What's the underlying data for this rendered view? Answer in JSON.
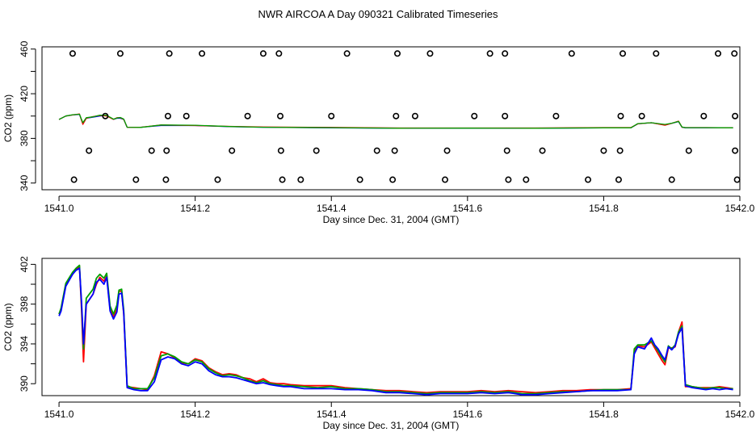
{
  "title": "NWR AIRCOA A  Day 090321  Calibrated Timeseries",
  "colors": {
    "red": "#ff0000",
    "green": "#00a000",
    "blue": "#0000ff",
    "axis": "#000000",
    "points": "#000000"
  },
  "chart_data": [
    {
      "type": "line",
      "panel": "top",
      "xlabel": "Day since Dec. 31, 2004 (GMT)",
      "ylabel": "CO2 (ppm)",
      "xlim": [
        0.975,
        2.0
      ],
      "ylim": [
        334,
        462
      ],
      "x_offset_label": "1541",
      "x_ticks": [
        1.0,
        1.2,
        1.4,
        1.6,
        1.8,
        2.0
      ],
      "x_tick_labels": [
        "1541.0",
        "1541.2",
        "1541.4",
        "1541.6",
        "1541.8",
        "1542.0"
      ],
      "y_ticks": [
        340,
        380,
        420,
        460
      ],
      "y_tick_labels": [
        "340",
        "380",
        "420",
        "460"
      ],
      "y_minor_ticks": [
        360,
        400,
        440
      ],
      "grid": false,
      "series": [
        {
          "color": "blue",
          "x": [
            1.0,
            1.01,
            1.02,
            1.03,
            1.035,
            1.04,
            1.05,
            1.06,
            1.07,
            1.08,
            1.085,
            1.09,
            1.095,
            1.1,
            1.12,
            1.15,
            1.2,
            1.25,
            1.3,
            1.4,
            1.5,
            1.6,
            1.7,
            1.8,
            1.84,
            1.85,
            1.87,
            1.89,
            1.9,
            1.91,
            1.915,
            1.92,
            1.95,
            1.99
          ],
          "y": [
            397,
            400,
            401,
            401.5,
            393,
            398,
            399,
            400,
            400.5,
            397,
            398,
            398,
            397,
            390,
            390,
            391.5,
            391.5,
            390.5,
            390,
            389.5,
            389,
            389,
            389,
            389.5,
            389.5,
            393,
            394,
            392,
            393.5,
            395,
            390,
            389.5,
            389.5,
            389.5
          ]
        },
        {
          "color": "red",
          "x": [
            1.0,
            1.01,
            1.02,
            1.03,
            1.035,
            1.04,
            1.05,
            1.06,
            1.07,
            1.08,
            1.085,
            1.09,
            1.095,
            1.1,
            1.12,
            1.15,
            1.2,
            1.25,
            1.3,
            1.4,
            1.5,
            1.6,
            1.7,
            1.8,
            1.84,
            1.85,
            1.87,
            1.89,
            1.9,
            1.91,
            1.915,
            1.92,
            1.95,
            1.99
          ],
          "y": [
            397,
            400,
            401,
            401.8,
            392.5,
            398,
            399.5,
            400.5,
            400,
            397,
            398.5,
            398.5,
            397,
            390,
            390,
            392,
            391.5,
            390.8,
            390.2,
            389.8,
            389.3,
            389.3,
            389.3,
            389.7,
            389.7,
            393,
            394,
            391.8,
            393.5,
            395.5,
            390,
            389.7,
            389.7,
            389.5
          ]
        },
        {
          "color": "green",
          "x": [
            1.0,
            1.01,
            1.02,
            1.03,
            1.035,
            1.04,
            1.05,
            1.06,
            1.07,
            1.08,
            1.085,
            1.09,
            1.095,
            1.1,
            1.12,
            1.15,
            1.2,
            1.25,
            1.3,
            1.4,
            1.5,
            1.6,
            1.7,
            1.8,
            1.84,
            1.85,
            1.87,
            1.89,
            1.9,
            1.91,
            1.915,
            1.92,
            1.95,
            1.99
          ],
          "y": [
            397,
            400,
            401.2,
            401.6,
            394,
            398.5,
            399.3,
            400.8,
            400.7,
            397.2,
            398.2,
            398.7,
            397.3,
            390,
            389.8,
            392,
            391.8,
            390.6,
            390,
            389.6,
            389.1,
            389.2,
            389.1,
            389.5,
            389.5,
            393.2,
            394,
            392.5,
            393.6,
            395.2,
            390.2,
            389.6,
            389.6,
            389.5
          ]
        }
      ],
      "points": {
        "x": [
          1.02,
          1.09,
          1.162,
          1.21,
          1.3,
          1.323,
          1.423,
          1.497,
          1.545,
          1.633,
          1.655,
          1.753,
          1.828,
          1.877,
          1.968,
          1.992,
          1.068,
          1.16,
          1.187,
          1.277,
          1.325,
          1.4,
          1.495,
          1.523,
          1.61,
          1.655,
          1.73,
          1.825,
          1.856,
          1.947,
          1.993,
          1.044,
          1.136,
          1.158,
          1.254,
          1.326,
          1.378,
          1.467,
          1.493,
          1.57,
          1.658,
          1.71,
          1.8,
          1.824,
          1.925,
          1.993,
          1.022,
          1.113,
          1.157,
          1.233,
          1.328,
          1.355,
          1.442,
          1.49,
          1.567,
          1.66,
          1.686,
          1.777,
          1.822,
          1.9,
          1.996
        ],
        "y": [
          456,
          456,
          456,
          456,
          456,
          456,
          456,
          456,
          456,
          456,
          456,
          456,
          456,
          456,
          456,
          456,
          400,
          400,
          400,
          400,
          400,
          400,
          400,
          400,
          400,
          400,
          400,
          400,
          400,
          400,
          400,
          369,
          369,
          369,
          369,
          369,
          369,
          369,
          369,
          369,
          369,
          369,
          369,
          369,
          369,
          369,
          343,
          343,
          343,
          343,
          343,
          343,
          343,
          343,
          343,
          343,
          343,
          343,
          343,
          343,
          343
        ]
      }
    },
    {
      "type": "line",
      "panel": "bottom",
      "xlabel": "Day since Dec. 31, 2004 (GMT)",
      "ylabel": "CO2 (ppm)",
      "xlim": [
        0.975,
        2.0
      ],
      "ylim": [
        388.8,
        402.6
      ],
      "x_ticks": [
        1.0,
        1.2,
        1.4,
        1.6,
        1.8,
        2.0
      ],
      "x_tick_labels": [
        "1541.0",
        "1541.2",
        "1541.4",
        "1541.6",
        "1541.8",
        "1542.0"
      ],
      "y_ticks": [
        390,
        394,
        398,
        402
      ],
      "y_tick_labels": [
        "390",
        "394",
        "398",
        "402"
      ],
      "y_minor_ticks": [
        392,
        396,
        400
      ],
      "grid": false,
      "series": [
        {
          "color": "red",
          "x": [
            1.0,
            1.003,
            1.01,
            1.02,
            1.025,
            1.03,
            1.033,
            1.036,
            1.04,
            1.05,
            1.055,
            1.06,
            1.066,
            1.07,
            1.075,
            1.08,
            1.085,
            1.088,
            1.092,
            1.095,
            1.1,
            1.11,
            1.12,
            1.13,
            1.14,
            1.15,
            1.16,
            1.17,
            1.18,
            1.19,
            1.2,
            1.21,
            1.22,
            1.23,
            1.24,
            1.25,
            1.26,
            1.27,
            1.28,
            1.29,
            1.3,
            1.31,
            1.32,
            1.33,
            1.34,
            1.36,
            1.38,
            1.4,
            1.42,
            1.44,
            1.46,
            1.48,
            1.5,
            1.52,
            1.54,
            1.56,
            1.58,
            1.6,
            1.62,
            1.64,
            1.66,
            1.68,
            1.7,
            1.72,
            1.74,
            1.76,
            1.78,
            1.8,
            1.82,
            1.84,
            1.845,
            1.85,
            1.86,
            1.87,
            1.875,
            1.88,
            1.885,
            1.89,
            1.895,
            1.9,
            1.905,
            1.91,
            1.915,
            1.92,
            1.93,
            1.94,
            1.95,
            1.96,
            1.97,
            1.98,
            1.99
          ],
          "y": [
            397.0,
            397.5,
            400.0,
            401.0,
            401.5,
            401.8,
            397.5,
            392.2,
            398.0,
            399.0,
            400.0,
            400.7,
            400.3,
            400.8,
            397.5,
            396.7,
            397.5,
            399.3,
            399.3,
            397.0,
            389.7,
            389.6,
            389.5,
            389.4,
            390.8,
            393.2,
            393.0,
            392.6,
            392.1,
            392.0,
            392.5,
            392.3,
            391.6,
            391.2,
            390.9,
            391.0,
            390.9,
            390.6,
            390.5,
            390.2,
            390.5,
            390.1,
            390.0,
            390.0,
            389.9,
            389.8,
            389.8,
            389.8,
            389.6,
            389.5,
            389.4,
            389.3,
            389.3,
            389.2,
            389.1,
            389.2,
            389.2,
            389.2,
            389.3,
            389.2,
            389.3,
            389.2,
            389.1,
            389.2,
            389.3,
            389.3,
            389.4,
            389.4,
            389.4,
            389.5,
            393.2,
            393.8,
            393.7,
            394.2,
            393.6,
            393.0,
            392.4,
            391.9,
            393.6,
            393.6,
            393.7,
            395.2,
            396.2,
            389.7,
            389.7,
            389.6,
            389.6,
            389.6,
            389.7,
            389.6,
            389.5
          ]
        },
        {
          "color": "green",
          "x": [
            1.0,
            1.003,
            1.01,
            1.02,
            1.025,
            1.03,
            1.033,
            1.036,
            1.04,
            1.05,
            1.055,
            1.06,
            1.066,
            1.07,
            1.075,
            1.08,
            1.085,
            1.088,
            1.092,
            1.095,
            1.1,
            1.11,
            1.12,
            1.13,
            1.14,
            1.15,
            1.16,
            1.17,
            1.18,
            1.19,
            1.2,
            1.21,
            1.22,
            1.23,
            1.24,
            1.25,
            1.26,
            1.27,
            1.28,
            1.29,
            1.3,
            1.31,
            1.32,
            1.33,
            1.34,
            1.36,
            1.38,
            1.4,
            1.42,
            1.44,
            1.46,
            1.48,
            1.5,
            1.52,
            1.54,
            1.56,
            1.58,
            1.6,
            1.62,
            1.64,
            1.66,
            1.68,
            1.7,
            1.72,
            1.74,
            1.76,
            1.78,
            1.8,
            1.82,
            1.84,
            1.845,
            1.85,
            1.86,
            1.87,
            1.875,
            1.88,
            1.885,
            1.89,
            1.895,
            1.9,
            1.905,
            1.91,
            1.915,
            1.92,
            1.93,
            1.94,
            1.95,
            1.96,
            1.97,
            1.98,
            1.99
          ],
          "y": [
            397.0,
            397.6,
            400.1,
            401.2,
            401.6,
            401.9,
            398.0,
            393.5,
            398.6,
            399.5,
            400.6,
            401.0,
            400.6,
            401.1,
            397.8,
            397.0,
            397.9,
            399.4,
            399.5,
            397.4,
            389.8,
            389.5,
            389.5,
            389.5,
            390.6,
            392.8,
            393.0,
            392.7,
            392.2,
            392.0,
            392.4,
            392.2,
            391.5,
            391.1,
            390.8,
            390.9,
            390.8,
            390.6,
            390.3,
            390.1,
            390.3,
            390.0,
            389.9,
            389.8,
            389.8,
            389.7,
            389.6,
            389.7,
            389.5,
            389.5,
            389.4,
            389.2,
            389.2,
            389.1,
            389.0,
            389.1,
            389.1,
            389.1,
            389.2,
            389.1,
            389.2,
            389.0,
            389.0,
            389.1,
            389.2,
            389.2,
            389.3,
            389.4,
            389.4,
            389.4,
            393.5,
            393.9,
            393.9,
            394.3,
            393.8,
            393.3,
            392.7,
            392.2,
            393.8,
            393.5,
            393.9,
            395.2,
            395.8,
            389.9,
            389.7,
            389.6,
            389.5,
            389.6,
            389.6,
            389.5,
            389.5
          ]
        },
        {
          "color": "blue",
          "x": [
            1.0,
            1.003,
            1.01,
            1.02,
            1.025,
            1.03,
            1.033,
            1.036,
            1.04,
            1.05,
            1.055,
            1.06,
            1.066,
            1.07,
            1.075,
            1.08,
            1.085,
            1.088,
            1.092,
            1.095,
            1.1,
            1.11,
            1.12,
            1.13,
            1.14,
            1.15,
            1.16,
            1.17,
            1.18,
            1.19,
            1.2,
            1.21,
            1.22,
            1.23,
            1.24,
            1.25,
            1.26,
            1.27,
            1.28,
            1.29,
            1.3,
            1.31,
            1.32,
            1.33,
            1.34,
            1.36,
            1.38,
            1.4,
            1.42,
            1.44,
            1.46,
            1.48,
            1.5,
            1.52,
            1.54,
            1.56,
            1.58,
            1.6,
            1.62,
            1.64,
            1.66,
            1.68,
            1.7,
            1.72,
            1.74,
            1.76,
            1.78,
            1.8,
            1.82,
            1.84,
            1.845,
            1.85,
            1.86,
            1.87,
            1.875,
            1.88,
            1.885,
            1.89,
            1.895,
            1.9,
            1.905,
            1.91,
            1.915,
            1.92,
            1.93,
            1.94,
            1.95,
            1.96,
            1.97,
            1.98,
            1.99
          ],
          "y": [
            396.8,
            397.3,
            399.8,
            401.0,
            401.4,
            401.6,
            398.3,
            394.0,
            398.0,
            399.0,
            400.2,
            400.5,
            400.0,
            400.7,
            397.3,
            396.5,
            397.2,
            399.0,
            399.1,
            397.1,
            389.6,
            389.4,
            389.3,
            389.3,
            390.2,
            392.4,
            392.7,
            392.5,
            392.0,
            391.8,
            392.2,
            392.0,
            391.3,
            390.9,
            390.7,
            390.7,
            390.6,
            390.4,
            390.2,
            390.0,
            390.1,
            389.9,
            389.8,
            389.7,
            389.7,
            389.5,
            389.5,
            389.5,
            389.4,
            389.4,
            389.3,
            389.1,
            389.1,
            389.0,
            388.9,
            389.0,
            389.0,
            389.0,
            389.1,
            389.0,
            389.1,
            388.9,
            388.9,
            389.0,
            389.1,
            389.2,
            389.3,
            389.3,
            389.3,
            389.4,
            393.0,
            393.7,
            393.5,
            394.6,
            393.9,
            393.5,
            392.9,
            392.4,
            393.7,
            393.4,
            393.8,
            395.0,
            395.6,
            389.8,
            389.6,
            389.5,
            389.4,
            389.5,
            389.4,
            389.5,
            389.4
          ]
        }
      ]
    }
  ]
}
